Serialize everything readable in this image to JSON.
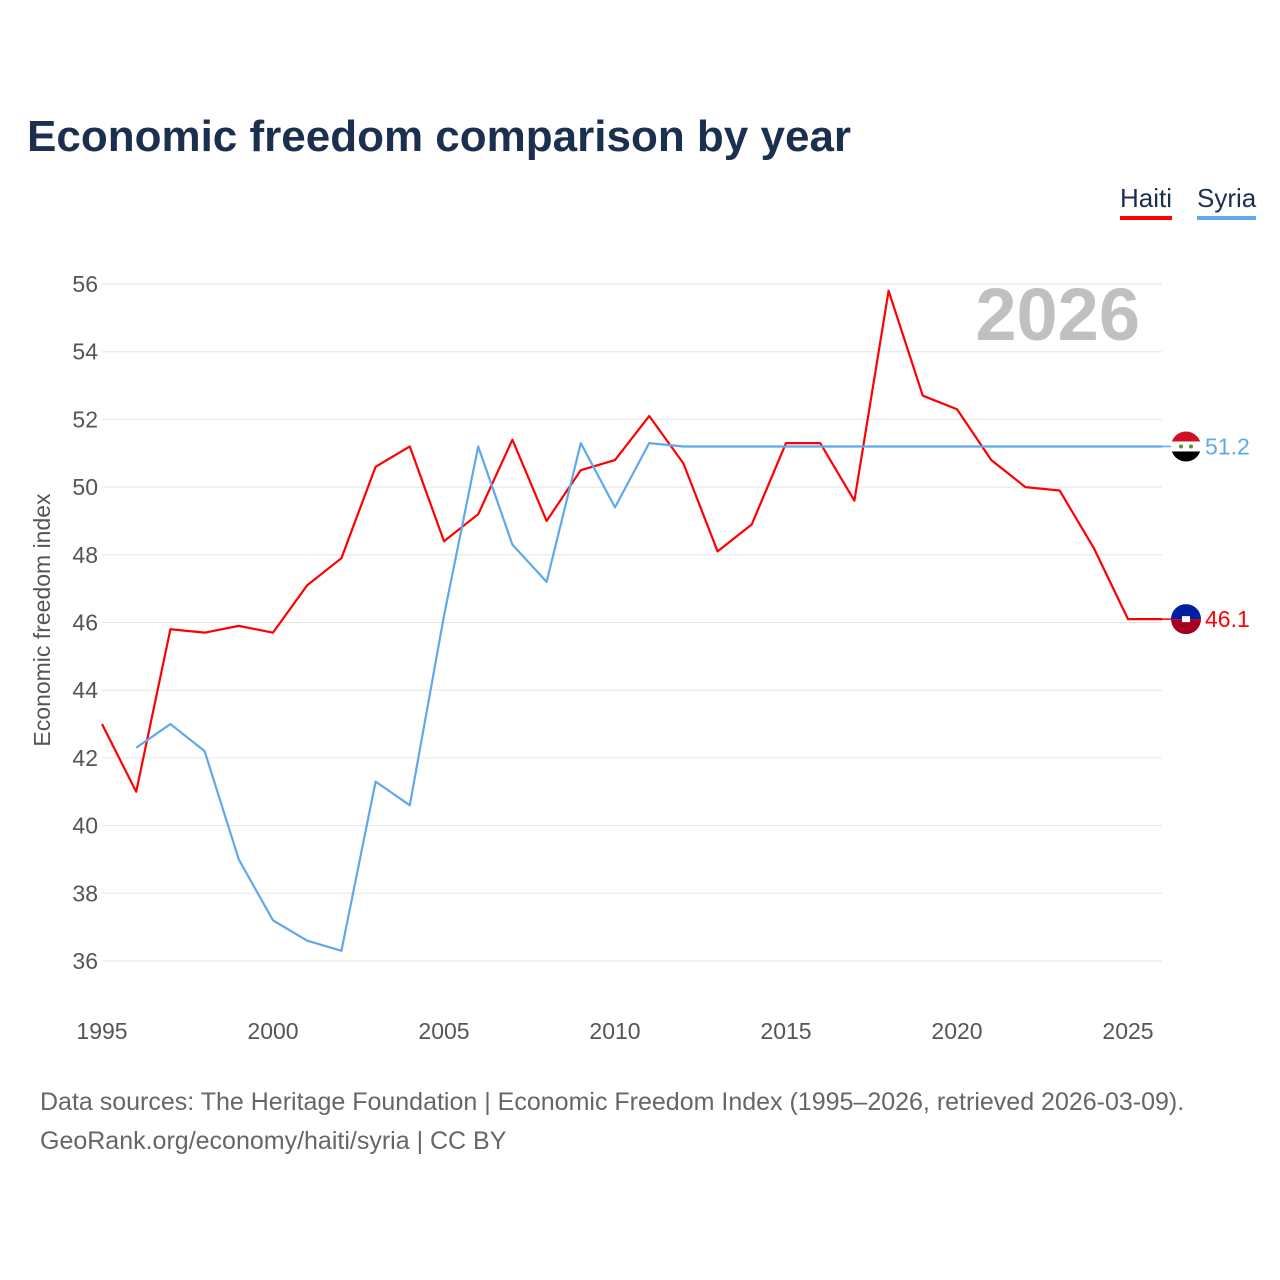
{
  "chart_data": {
    "type": "line",
    "title": "Economic freedom comparison by year",
    "ylabel": "Economic freedom index",
    "xlabel": "",
    "ylim": [
      35,
      57
    ],
    "xlim": [
      1995,
      2026
    ],
    "yticks": [
      36,
      38,
      40,
      42,
      44,
      46,
      48,
      50,
      52,
      54,
      56
    ],
    "xticks": [
      1995,
      2000,
      2005,
      2010,
      2015,
      2020,
      2025
    ],
    "grid": true,
    "legend_placement": "top-right",
    "year_label": "2026",
    "series": [
      {
        "name": "Haiti",
        "color": "#ff0000",
        "end_label": "46.1",
        "x": [
          1995,
          1996,
          1997,
          1998,
          1999,
          2000,
          2001,
          2002,
          2003,
          2004,
          2005,
          2006,
          2007,
          2008,
          2009,
          2010,
          2011,
          2012,
          2013,
          2014,
          2015,
          2016,
          2017,
          2018,
          2019,
          2020,
          2021,
          2022,
          2023,
          2024,
          2025,
          2026
        ],
        "values": [
          43.0,
          41.0,
          45.8,
          45.7,
          45.9,
          45.7,
          47.1,
          47.9,
          50.6,
          51.2,
          48.4,
          49.2,
          51.4,
          49.0,
          50.5,
          50.8,
          52.1,
          50.7,
          48.1,
          48.9,
          51.3,
          51.3,
          49.6,
          55.8,
          52.7,
          52.3,
          50.8,
          50.0,
          49.9,
          48.2,
          46.1,
          46.1
        ]
      },
      {
        "name": "Syria",
        "color": "#5fa8eb",
        "end_label": "51.2",
        "x": [
          1996,
          1997,
          1998,
          1999,
          2000,
          2001,
          2002,
          2003,
          2004,
          2005,
          2006,
          2007,
          2008,
          2009,
          2010,
          2011,
          2012,
          2026
        ],
        "values": [
          42.3,
          43.0,
          42.2,
          39.0,
          37.2,
          36.6,
          36.3,
          41.3,
          40.6,
          46.2,
          51.2,
          48.3,
          47.2,
          51.3,
          49.4,
          51.3,
          51.2,
          51.2
        ]
      }
    ]
  },
  "footer": {
    "line1": "Data sources: The Heritage Foundation | Economic Freedom Index (1995–2026, retrieved 2026-03-09).",
    "line2": "GeoRank.org/economy/haiti/syria | CC BY"
  }
}
